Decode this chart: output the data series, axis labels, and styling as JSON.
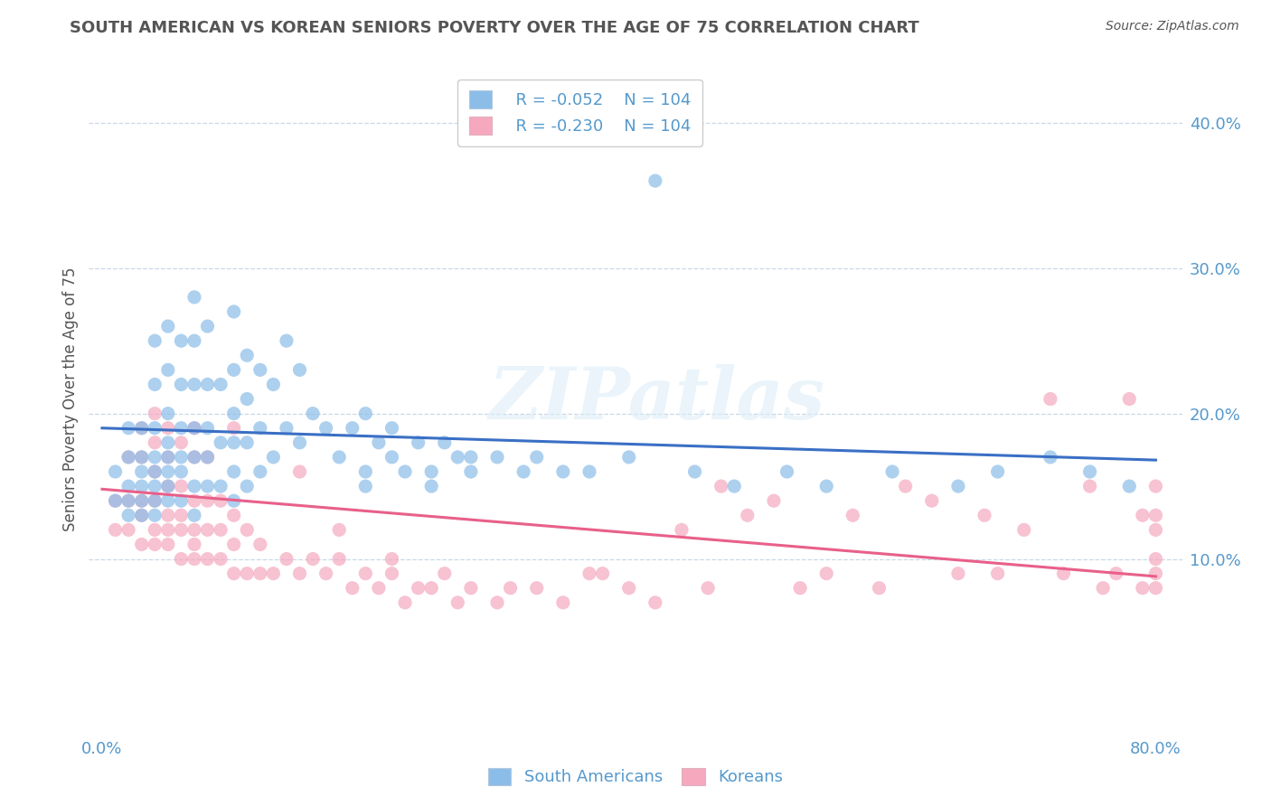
{
  "title": "SOUTH AMERICAN VS KOREAN SENIORS POVERTY OVER THE AGE OF 75 CORRELATION CHART",
  "source": "Source: ZipAtlas.com",
  "ylabel": "Seniors Poverty Over the Age of 75",
  "xlim": [
    -0.01,
    0.82
  ],
  "ylim": [
    -0.02,
    0.44
  ],
  "xtick_positions": [
    0.0,
    0.1,
    0.2,
    0.3,
    0.4,
    0.5,
    0.6,
    0.7,
    0.8
  ],
  "xticklabels": [
    "0.0%",
    "",
    "",
    "",
    "",
    "",
    "",
    "",
    "80.0%"
  ],
  "yticks_right": [
    0.1,
    0.2,
    0.3,
    0.4
  ],
  "ytick_right_labels": [
    "10.0%",
    "20.0%",
    "30.0%",
    "40.0%"
  ],
  "blue_color": "#8bbde8",
  "pink_color": "#f5a8be",
  "blue_line_color": "#3a6fc4",
  "pink_line_color": "#e8608a",
  "legend_R_blue": "R = -0.052",
  "legend_N_blue": "N = 104",
  "legend_R_pink": "R = -0.230",
  "legend_N_pink": "N = 104",
  "legend_label_blue": "South Americans",
  "legend_label_pink": "Koreans",
  "watermark": "ZIPatlas",
  "background_color": "#ffffff",
  "grid_color": "#c8d8e8",
  "title_color": "#555555",
  "axis_color": "#5599cc",
  "blue_scatter_x": [
    0.01,
    0.01,
    0.02,
    0.02,
    0.02,
    0.02,
    0.02,
    0.03,
    0.03,
    0.03,
    0.03,
    0.03,
    0.03,
    0.04,
    0.04,
    0.04,
    0.04,
    0.04,
    0.04,
    0.04,
    0.04,
    0.05,
    0.05,
    0.05,
    0.05,
    0.05,
    0.05,
    0.05,
    0.05,
    0.06,
    0.06,
    0.06,
    0.06,
    0.06,
    0.06,
    0.07,
    0.07,
    0.07,
    0.07,
    0.07,
    0.07,
    0.07,
    0.08,
    0.08,
    0.08,
    0.08,
    0.08,
    0.09,
    0.09,
    0.09,
    0.1,
    0.1,
    0.1,
    0.1,
    0.1,
    0.1,
    0.11,
    0.11,
    0.11,
    0.11,
    0.12,
    0.12,
    0.12,
    0.13,
    0.13,
    0.14,
    0.14,
    0.15,
    0.15,
    0.16,
    0.17,
    0.18,
    0.19,
    0.2,
    0.2,
    0.21,
    0.22,
    0.23,
    0.24,
    0.25,
    0.26,
    0.27,
    0.28,
    0.3,
    0.32,
    0.33,
    0.35,
    0.37,
    0.4,
    0.42,
    0.45,
    0.48,
    0.52,
    0.55,
    0.6,
    0.65,
    0.68,
    0.72,
    0.75,
    0.78,
    0.2,
    0.22,
    0.25,
    0.28
  ],
  "blue_scatter_y": [
    0.14,
    0.16,
    0.13,
    0.14,
    0.15,
    0.17,
    0.19,
    0.13,
    0.14,
    0.15,
    0.16,
    0.17,
    0.19,
    0.13,
    0.14,
    0.15,
    0.16,
    0.17,
    0.19,
    0.22,
    0.25,
    0.14,
    0.15,
    0.16,
    0.17,
    0.18,
    0.2,
    0.23,
    0.26,
    0.14,
    0.16,
    0.17,
    0.19,
    0.22,
    0.25,
    0.13,
    0.15,
    0.17,
    0.19,
    0.22,
    0.25,
    0.28,
    0.15,
    0.17,
    0.19,
    0.22,
    0.26,
    0.15,
    0.18,
    0.22,
    0.14,
    0.16,
    0.18,
    0.2,
    0.23,
    0.27,
    0.15,
    0.18,
    0.21,
    0.24,
    0.16,
    0.19,
    0.23,
    0.17,
    0.22,
    0.19,
    0.25,
    0.18,
    0.23,
    0.2,
    0.19,
    0.17,
    0.19,
    0.16,
    0.2,
    0.18,
    0.19,
    0.16,
    0.18,
    0.16,
    0.18,
    0.17,
    0.16,
    0.17,
    0.16,
    0.17,
    0.16,
    0.16,
    0.17,
    0.36,
    0.16,
    0.15,
    0.16,
    0.15,
    0.16,
    0.15,
    0.16,
    0.17,
    0.16,
    0.15,
    0.15,
    0.17,
    0.15,
    0.17
  ],
  "pink_scatter_x": [
    0.01,
    0.01,
    0.02,
    0.02,
    0.02,
    0.03,
    0.03,
    0.03,
    0.03,
    0.03,
    0.04,
    0.04,
    0.04,
    0.04,
    0.04,
    0.04,
    0.05,
    0.05,
    0.05,
    0.05,
    0.05,
    0.05,
    0.06,
    0.06,
    0.06,
    0.06,
    0.06,
    0.07,
    0.07,
    0.07,
    0.07,
    0.07,
    0.07,
    0.08,
    0.08,
    0.08,
    0.08,
    0.09,
    0.09,
    0.09,
    0.1,
    0.1,
    0.1,
    0.11,
    0.11,
    0.12,
    0.12,
    0.13,
    0.14,
    0.15,
    0.16,
    0.17,
    0.18,
    0.19,
    0.2,
    0.21,
    0.22,
    0.23,
    0.24,
    0.25,
    0.26,
    0.27,
    0.28,
    0.3,
    0.31,
    0.33,
    0.35,
    0.37,
    0.38,
    0.4,
    0.42,
    0.44,
    0.46,
    0.47,
    0.49,
    0.51,
    0.53,
    0.55,
    0.57,
    0.59,
    0.61,
    0.63,
    0.65,
    0.67,
    0.68,
    0.7,
    0.72,
    0.73,
    0.75,
    0.76,
    0.77,
    0.78,
    0.79,
    0.79,
    0.8,
    0.8,
    0.8,
    0.8,
    0.8,
    0.8,
    0.1,
    0.15,
    0.18,
    0.22
  ],
  "pink_scatter_y": [
    0.12,
    0.14,
    0.12,
    0.14,
    0.17,
    0.11,
    0.13,
    0.14,
    0.17,
    0.19,
    0.11,
    0.12,
    0.14,
    0.16,
    0.18,
    0.2,
    0.11,
    0.12,
    0.13,
    0.15,
    0.17,
    0.19,
    0.1,
    0.12,
    0.13,
    0.15,
    0.18,
    0.1,
    0.11,
    0.12,
    0.14,
    0.17,
    0.19,
    0.1,
    0.12,
    0.14,
    0.17,
    0.1,
    0.12,
    0.14,
    0.09,
    0.11,
    0.13,
    0.09,
    0.12,
    0.09,
    0.11,
    0.09,
    0.1,
    0.09,
    0.1,
    0.09,
    0.1,
    0.08,
    0.09,
    0.08,
    0.09,
    0.07,
    0.08,
    0.08,
    0.09,
    0.07,
    0.08,
    0.07,
    0.08,
    0.08,
    0.07,
    0.09,
    0.09,
    0.08,
    0.07,
    0.12,
    0.08,
    0.15,
    0.13,
    0.14,
    0.08,
    0.09,
    0.13,
    0.08,
    0.15,
    0.14,
    0.09,
    0.13,
    0.09,
    0.12,
    0.21,
    0.09,
    0.15,
    0.08,
    0.09,
    0.21,
    0.08,
    0.13,
    0.08,
    0.09,
    0.1,
    0.12,
    0.13,
    0.15,
    0.19,
    0.16,
    0.12,
    0.1
  ],
  "blue_trend_x": [
    0.0,
    0.8
  ],
  "blue_trend_y": [
    0.19,
    0.168
  ],
  "pink_trend_x": [
    0.0,
    0.8
  ],
  "pink_trend_y": [
    0.148,
    0.088
  ]
}
